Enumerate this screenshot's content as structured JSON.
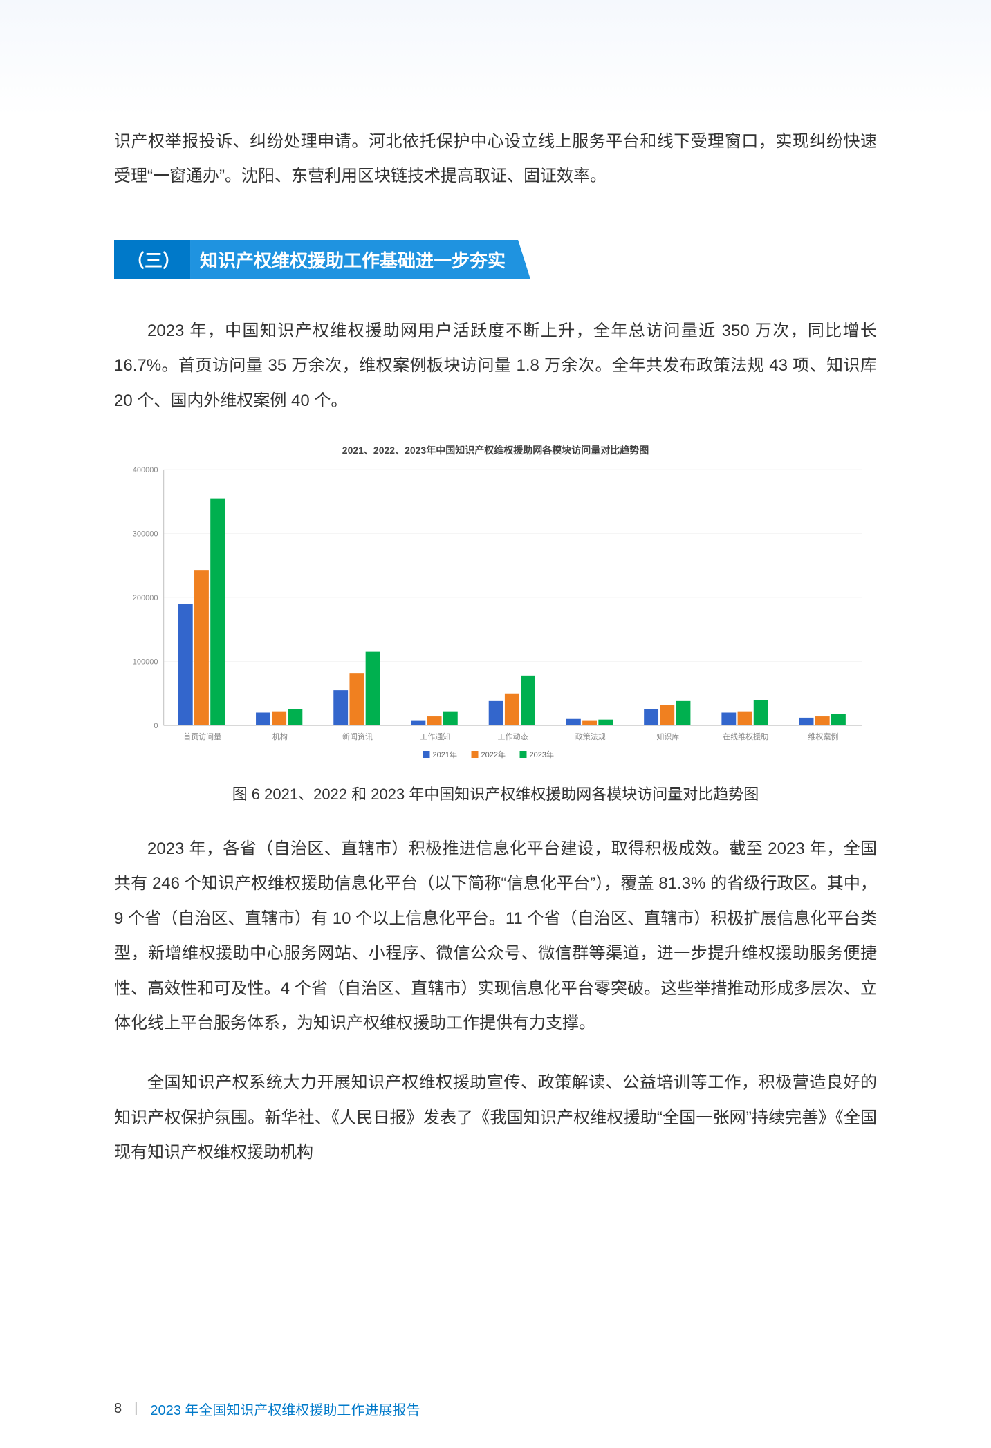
{
  "top_paragraph": "识产权举报投诉、纠纷处理申请。河北依托保护中心设立线上服务平台和线下受理窗口，实现纠纷快速受理“一窗通办”。沈阳、东营利用区块链技术提高取证、固证效率。",
  "section": {
    "num": "（三）",
    "title": "知识产权维权援助工作基础进一步夯实"
  },
  "para1": "2023 年，中国知识产权维权援助网用户活跃度不断上升，全年总访问量近 350 万次，同比增长 16.7%。首页访问量 35 万余次，维权案例板块访问量 1.8 万余次。全年共发布政策法规 43 项、知识库 20 个、国内外维权案例 40 个。",
  "chart": {
    "title": "2021、2022、2023年中国知识产权维权援助网各模块访问量对比趋势图",
    "legend": [
      "2021年",
      "2022年",
      "2023年"
    ],
    "categories": [
      "首页访问量",
      "机构",
      "新闻资讯",
      "工作通知",
      "工作动态",
      "政策法规",
      "知识库",
      "在线维权援助",
      "维权案例"
    ],
    "series": [
      {
        "name": "2021年",
        "color": "#3366cc",
        "values": [
          190000,
          20000,
          55000,
          8000,
          38000,
          10000,
          25000,
          20000,
          12000
        ]
      },
      {
        "name": "2022年",
        "color": "#f08020",
        "values": [
          242000,
          22000,
          82000,
          14000,
          50000,
          8000,
          32000,
          22000,
          14000
        ]
      },
      {
        "name": "2023年",
        "color": "#00b04f",
        "values": [
          355000,
          25000,
          115000,
          22000,
          78000,
          9000,
          38000,
          40000,
          18000
        ]
      }
    ],
    "ylim": [
      0,
      400000
    ],
    "ytick_step": 100000,
    "background_color": "#ffffff",
    "grid_color": "#f5f5f5",
    "axis_color": "#cccccc",
    "bar_group_width": 0.62,
    "font_size_axis": 11,
    "font_size_title": 14
  },
  "chart_caption": "图 6 2021、2022 和 2023 年中国知识产权维权援助网各模块访问量对比趋势图",
  "para2": "2023 年，各省（自治区、直辖市）积极推进信息化平台建设，取得积极成效。截至 2023 年，全国共有 246 个知识产权维权援助信息化平台（以下简称“信息化平台”），覆盖 81.3% 的省级行政区。其中，9 个省（自治区、直辖市）有 10 个以上信息化平台。11 个省（自治区、直辖市）积极扩展信息化平台类型，新增维权援助中心服务网站、小程序、微信公众号、微信群等渠道，进一步提升维权援助服务便捷性、高效性和可及性。4 个省（自治区、直辖市）实现信息化平台零突破。这些举措推动形成多层次、立体化线上平台服务体系，为知识产权维权援助工作提供有力支撑。",
  "para3": "全国知识产权系统大力开展知识产权维权援助宣传、政策解读、公益培训等工作，积极营造良好的知识产权保护氛围。新华社、《人民日报》发表了《我国知识产权维权援助“全国一张网”持续完善》《全国现有知识产权维权援助机构",
  "footer": {
    "page_number": "8",
    "report_title": "2023 年全国知识产权维权援助工作进展报告"
  }
}
